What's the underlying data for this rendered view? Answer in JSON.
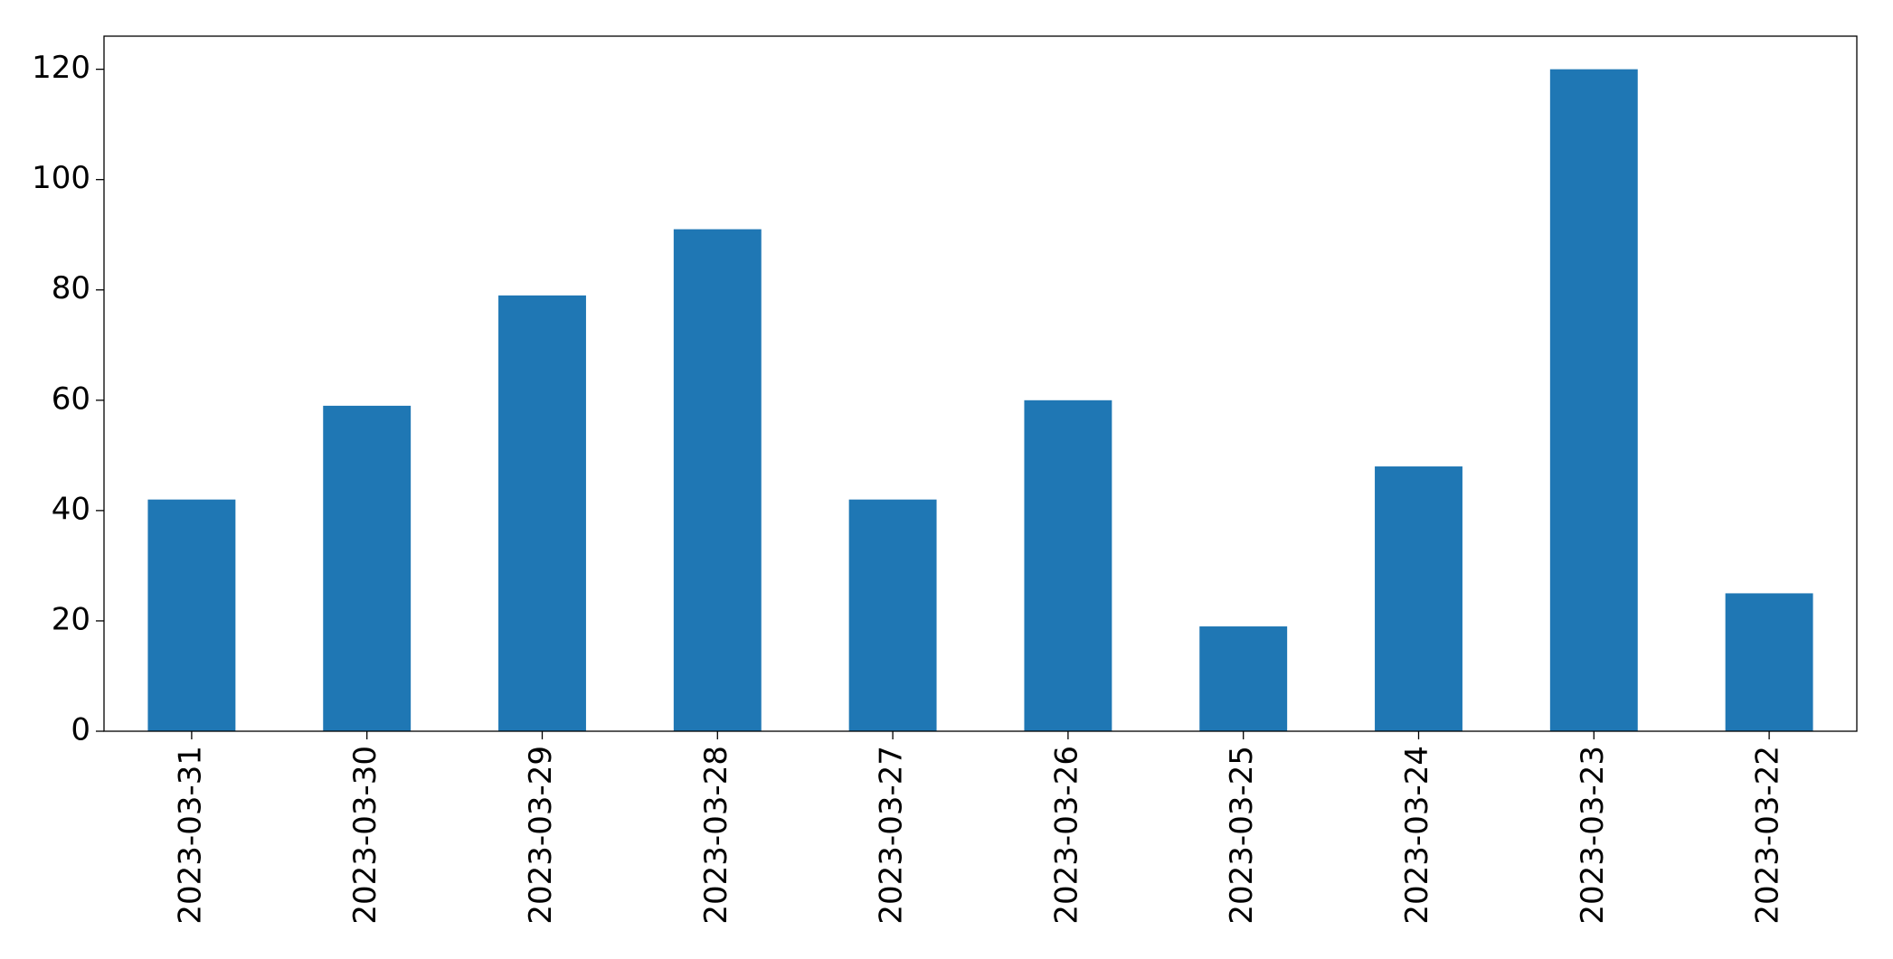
{
  "chart_data": {
    "type": "bar",
    "categories": [
      "2023-03-31",
      "2023-03-30",
      "2023-03-29",
      "2023-03-28",
      "2023-03-27",
      "2023-03-26",
      "2023-03-25",
      "2023-03-24",
      "2023-03-23",
      "2023-03-22"
    ],
    "values": [
      42,
      59,
      79,
      91,
      42,
      60,
      19,
      48,
      120,
      25
    ],
    "color": "#1f77b4",
    "ylim": [
      0,
      126
    ],
    "yticks": [
      0,
      20,
      40,
      60,
      80,
      100,
      120
    ],
    "grid": false
  }
}
